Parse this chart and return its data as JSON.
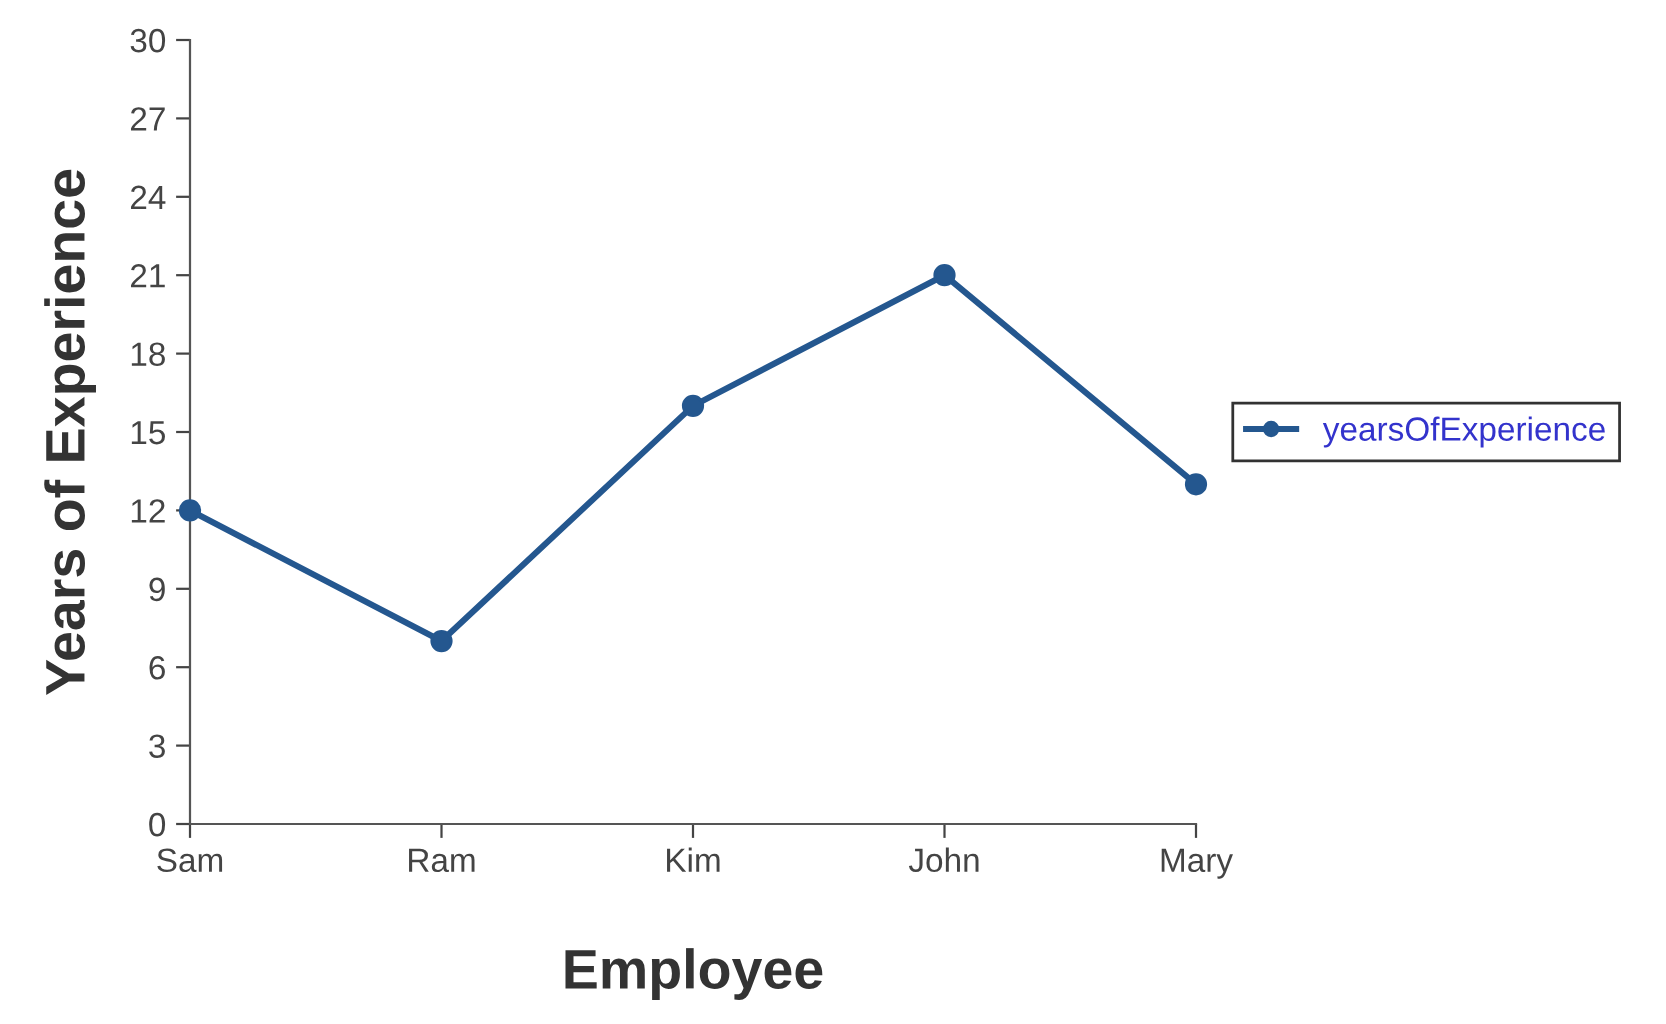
{
  "chart_data": {
    "type": "line",
    "xlabel": "Employee",
    "ylabel": "Years of Experience",
    "categories": [
      "Sam",
      "Ram",
      "Kim",
      "John",
      "Mary"
    ],
    "series": [
      {
        "name": "yearsOfExperience",
        "color": "#24578f",
        "values": [
          12,
          7,
          16,
          21,
          13
        ]
      }
    ],
    "ylim": [
      0,
      30
    ],
    "yticks": [
      0,
      3,
      6,
      9,
      12,
      15,
      18,
      21,
      24,
      27,
      30
    ],
    "grid": false,
    "legend": "right",
    "marker": "circle",
    "line_style": "solid"
  }
}
